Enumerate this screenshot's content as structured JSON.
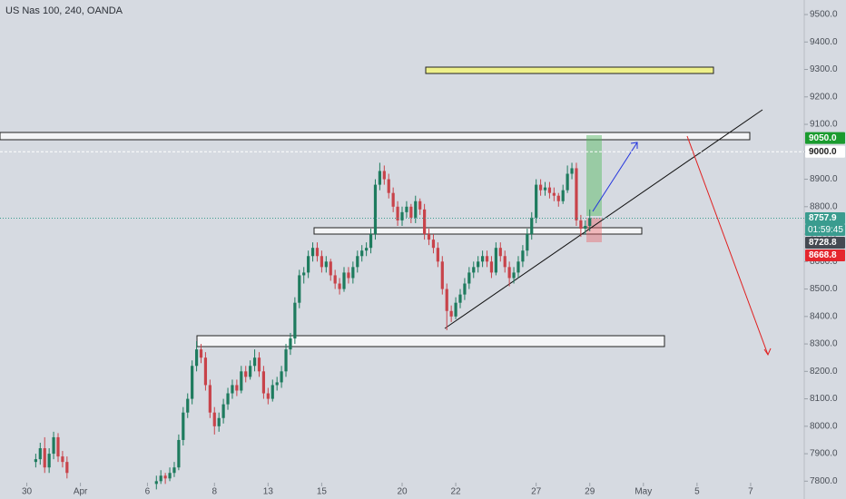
{
  "chart_data": {
    "type": "candlestick",
    "title": "US Nas 100, 240, OANDA",
    "up_color": "#1e7b5e",
    "down_color": "#c8434a",
    "xlim": [
      0,
      180
    ],
    "ylim": [
      7735,
      9553
    ],
    "xticks": [
      {
        "value": 6,
        "label": "30"
      },
      {
        "value": 18,
        "label": "Apr"
      },
      {
        "value": 33,
        "label": "6"
      },
      {
        "value": 48,
        "label": "8"
      },
      {
        "value": 60,
        "label": "13"
      },
      {
        "value": 72,
        "label": "15"
      },
      {
        "value": 90,
        "label": "20"
      },
      {
        "value": 102,
        "label": "22"
      },
      {
        "value": 120,
        "label": "27"
      },
      {
        "value": 132,
        "label": "29"
      },
      {
        "value": 144,
        "label": "May"
      },
      {
        "value": 156,
        "label": "5"
      },
      {
        "value": 168,
        "label": "7"
      }
    ],
    "yticks": [
      {
        "value": 7800,
        "label": "7800.0"
      },
      {
        "value": 7900,
        "label": "7900.0"
      },
      {
        "value": 8000,
        "label": "8000.0"
      },
      {
        "value": 8100,
        "label": "8100.0"
      },
      {
        "value": 8200,
        "label": "8200.0"
      },
      {
        "value": 8300,
        "label": "8300.0"
      },
      {
        "value": 8400,
        "label": "8400.0"
      },
      {
        "value": 8500,
        "label": "8500.0"
      },
      {
        "value": 8600,
        "label": "8600.0"
      },
      {
        "value": 8700,
        "label": "8700.0"
      },
      {
        "value": 8800,
        "label": "8800.0"
      },
      {
        "value": 8900,
        "label": "8900.0"
      },
      {
        "value": 9000,
        "label": "9000.0"
      },
      {
        "value": 9100,
        "label": "9100.0"
      },
      {
        "value": 9200,
        "label": "9200.0"
      },
      {
        "value": 9300,
        "label": "9300.0"
      },
      {
        "value": 9400,
        "label": "9400.0"
      },
      {
        "value": 9500,
        "label": "9500.0"
      }
    ],
    "price_badges": [
      {
        "value": 9050,
        "label": "9050.0",
        "color": "#1a9b2e"
      },
      {
        "value": 9000,
        "label": "9000.0",
        "color": "#ffffff",
        "line": "dashed"
      },
      {
        "value": 8757.9,
        "label": "8757.9",
        "color": "#3a9c8f",
        "line": "dotted",
        "countdown": "01:59:45"
      },
      {
        "value": 8728.8,
        "label": "8728.8",
        "color": "#454a52"
      },
      {
        "value": 8668.8,
        "label": "8668.8",
        "color": "#e5262d"
      }
    ],
    "x": [
      8,
      9,
      10,
      11,
      12,
      13,
      14,
      15,
      35,
      36,
      37,
      38,
      39,
      40,
      41,
      42,
      43,
      44,
      45,
      46,
      47,
      48,
      49,
      50,
      51,
      52,
      53,
      54,
      55,
      56,
      57,
      58,
      59,
      60,
      61,
      62,
      63,
      64,
      65,
      66,
      67,
      68,
      69,
      70,
      71,
      72,
      73,
      74,
      75,
      76,
      77,
      78,
      79,
      80,
      81,
      82,
      83,
      84,
      85,
      86,
      87,
      88,
      89,
      90,
      91,
      92,
      93,
      94,
      95,
      96,
      97,
      98,
      99,
      100,
      101,
      102,
      103,
      104,
      105,
      106,
      107,
      108,
      109,
      110,
      111,
      112,
      113,
      114,
      115,
      116,
      117,
      118,
      119,
      120,
      121,
      122,
      123,
      124,
      125,
      126,
      127,
      128,
      129,
      130,
      131,
      132
    ],
    "open": [
      7870,
      7880,
      7920,
      7850,
      7900,
      7960,
      7890,
      7870,
      7790,
      7800,
      7820,
      7810,
      7830,
      7850,
      7950,
      8050,
      8100,
      8220,
      8280,
      8250,
      8150,
      8050,
      8000,
      8030,
      8080,
      8120,
      8150,
      8130,
      8200,
      8180,
      8220,
      8250,
      8200,
      8120,
      8100,
      8150,
      8160,
      8200,
      8280,
      8320,
      8450,
      8550,
      8560,
      8620,
      8650,
      8620,
      8580,
      8600,
      8550,
      8520,
      8500,
      8560,
      8540,
      8580,
      8620,
      8640,
      8650,
      8700,
      8880,
      8930,
      8900,
      8850,
      8800,
      8750,
      8780,
      8800,
      8760,
      8820,
      8790,
      8700,
      8680,
      8650,
      8600,
      8500,
      8420,
      8400,
      8450,
      8480,
      8520,
      8560,
      8580,
      8600,
      8620,
      8600,
      8560,
      8650,
      8620,
      8580,
      8540,
      8560,
      8600,
      8640,
      8700,
      8760,
      8880,
      8860,
      8870,
      8850,
      8840,
      8820,
      8860,
      8920,
      8940,
      8750,
      8720,
      8730
    ],
    "high": [
      7900,
      7940,
      7960,
      7920,
      7980,
      7975,
      7910,
      7890,
      7820,
      7840,
      7830,
      7850,
      7870,
      7970,
      8070,
      8120,
      8240,
      8310,
      8300,
      8270,
      8170,
      8070,
      8050,
      8100,
      8140,
      8170,
      8170,
      8220,
      8220,
      8240,
      8280,
      8270,
      8220,
      8140,
      8170,
      8180,
      8220,
      8300,
      8340,
      8470,
      8570,
      8580,
      8640,
      8670,
      8670,
      8640,
      8620,
      8610,
      8570,
      8540,
      8580,
      8580,
      8600,
      8640,
      8660,
      8670,
      8720,
      8900,
      8960,
      8950,
      8920,
      8870,
      8820,
      8800,
      8820,
      8810,
      8840,
      8830,
      8810,
      8720,
      8700,
      8670,
      8620,
      8520,
      8440,
      8470,
      8500,
      8540,
      8580,
      8600,
      8620,
      8640,
      8640,
      8620,
      8670,
      8670,
      8640,
      8600,
      8580,
      8620,
      8660,
      8720,
      8780,
      8900,
      8900,
      8890,
      8890,
      8870,
      8850,
      8880,
      8950,
      8960,
      8960,
      8770,
      8750,
      8790
    ],
    "low": [
      7850,
      7860,
      7830,
      7830,
      7880,
      7870,
      7850,
      7810,
      7770,
      7790,
      7790,
      7800,
      7815,
      7840,
      7930,
      8030,
      8080,
      8200,
      8230,
      8130,
      8030,
      7970,
      7980,
      8010,
      8060,
      8100,
      8110,
      8120,
      8160,
      8170,
      8200,
      8180,
      8100,
      8080,
      8090,
      8130,
      8140,
      8180,
      8260,
      8300,
      8430,
      8520,
      8540,
      8600,
      8600,
      8560,
      8560,
      8530,
      8500,
      8480,
      8490,
      8520,
      8520,
      8560,
      8600,
      8620,
      8630,
      8680,
      8860,
      8880,
      8830,
      8780,
      8730,
      8730,
      8760,
      8740,
      8740,
      8770,
      8680,
      8660,
      8630,
      8580,
      8480,
      8350,
      8380,
      8390,
      8430,
      8460,
      8500,
      8540,
      8560,
      8580,
      8580,
      8540,
      8550,
      8600,
      8560,
      8510,
      8520,
      8540,
      8580,
      8620,
      8680,
      8740,
      8840,
      8840,
      8830,
      8820,
      8800,
      8810,
      8850,
      8900,
      8730,
      8690,
      8700,
      8710
    ],
    "close": [
      7880,
      7920,
      7850,
      7900,
      7960,
      7890,
      7870,
      7830,
      7800,
      7820,
      7810,
      7830,
      7850,
      7950,
      8050,
      8100,
      8220,
      8280,
      8250,
      8150,
      8050,
      8000,
      8030,
      8080,
      8120,
      8150,
      8130,
      8200,
      8180,
      8220,
      8250,
      8200,
      8120,
      8100,
      8150,
      8160,
      8200,
      8280,
      8320,
      8450,
      8550,
      8560,
      8620,
      8650,
      8620,
      8580,
      8600,
      8550,
      8520,
      8500,
      8560,
      8540,
      8580,
      8620,
      8640,
      8650,
      8700,
      8880,
      8930,
      8900,
      8850,
      8800,
      8750,
      8780,
      8800,
      8760,
      8820,
      8790,
      8700,
      8680,
      8650,
      8600,
      8500,
      8420,
      8400,
      8450,
      8480,
      8520,
      8560,
      8580,
      8600,
      8620,
      8600,
      8560,
      8650,
      8620,
      8580,
      8540,
      8560,
      8600,
      8640,
      8700,
      8760,
      8880,
      8860,
      8870,
      8850,
      8840,
      8820,
      8860,
      8920,
      8940,
      8750,
      8720,
      8730,
      8757.9
    ]
  }
}
